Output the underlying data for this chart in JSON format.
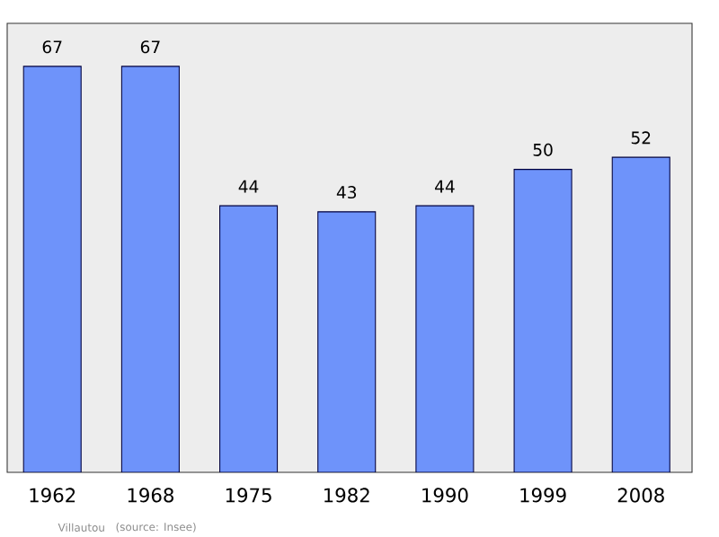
{
  "chart_data": {
    "type": "bar",
    "categories": [
      "1962",
      "1968",
      "1975",
      "1982",
      "1990",
      "1999",
      "2008"
    ],
    "values": [
      67,
      67,
      44,
      43,
      44,
      50,
      52
    ],
    "color": "#6e93fa",
    "data_labels": true,
    "annotations": [
      "Villautou",
      "(source: Insee)"
    ]
  }
}
